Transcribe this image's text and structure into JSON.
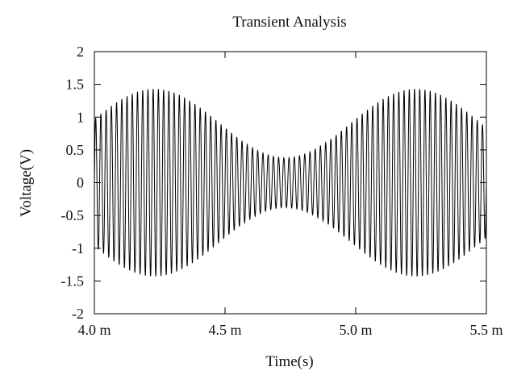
{
  "chart_data": {
    "type": "line",
    "title": "Transient Analysis",
    "xlabel": "Time(s)",
    "ylabel": "Voltage(V)",
    "xlim": [
      0.004,
      0.0055
    ],
    "ylim": [
      -2,
      2
    ],
    "x_ticks": [
      {
        "value": 0.004,
        "label": "4.0 m"
      },
      {
        "value": 0.0045,
        "label": "4.5 m"
      },
      {
        "value": 0.005,
        "label": "5.0 m"
      },
      {
        "value": 0.0055,
        "label": "5.5 m"
      }
    ],
    "y_ticks": [
      {
        "value": 2,
        "label": "2"
      },
      {
        "value": 1.5,
        "label": "1.5"
      },
      {
        "value": 1,
        "label": "1"
      },
      {
        "value": 0.5,
        "label": "0.5"
      },
      {
        "value": 0,
        "label": "0"
      },
      {
        "value": -0.5,
        "label": "-0.5"
      },
      {
        "value": -1,
        "label": "-1"
      },
      {
        "value": -1.5,
        "label": "-1.5"
      },
      {
        "value": -2,
        "label": "-2"
      }
    ],
    "grid": false,
    "line_color": "#000000",
    "series": [
      {
        "signal": {
          "carrier_frequency_hz": 50000,
          "envelope_max_v": 1.43,
          "envelope_min_v": 0.38,
          "envelope_period_s": 0.001,
          "envelope_peak_time_s": 0.00423
        }
      }
    ]
  }
}
